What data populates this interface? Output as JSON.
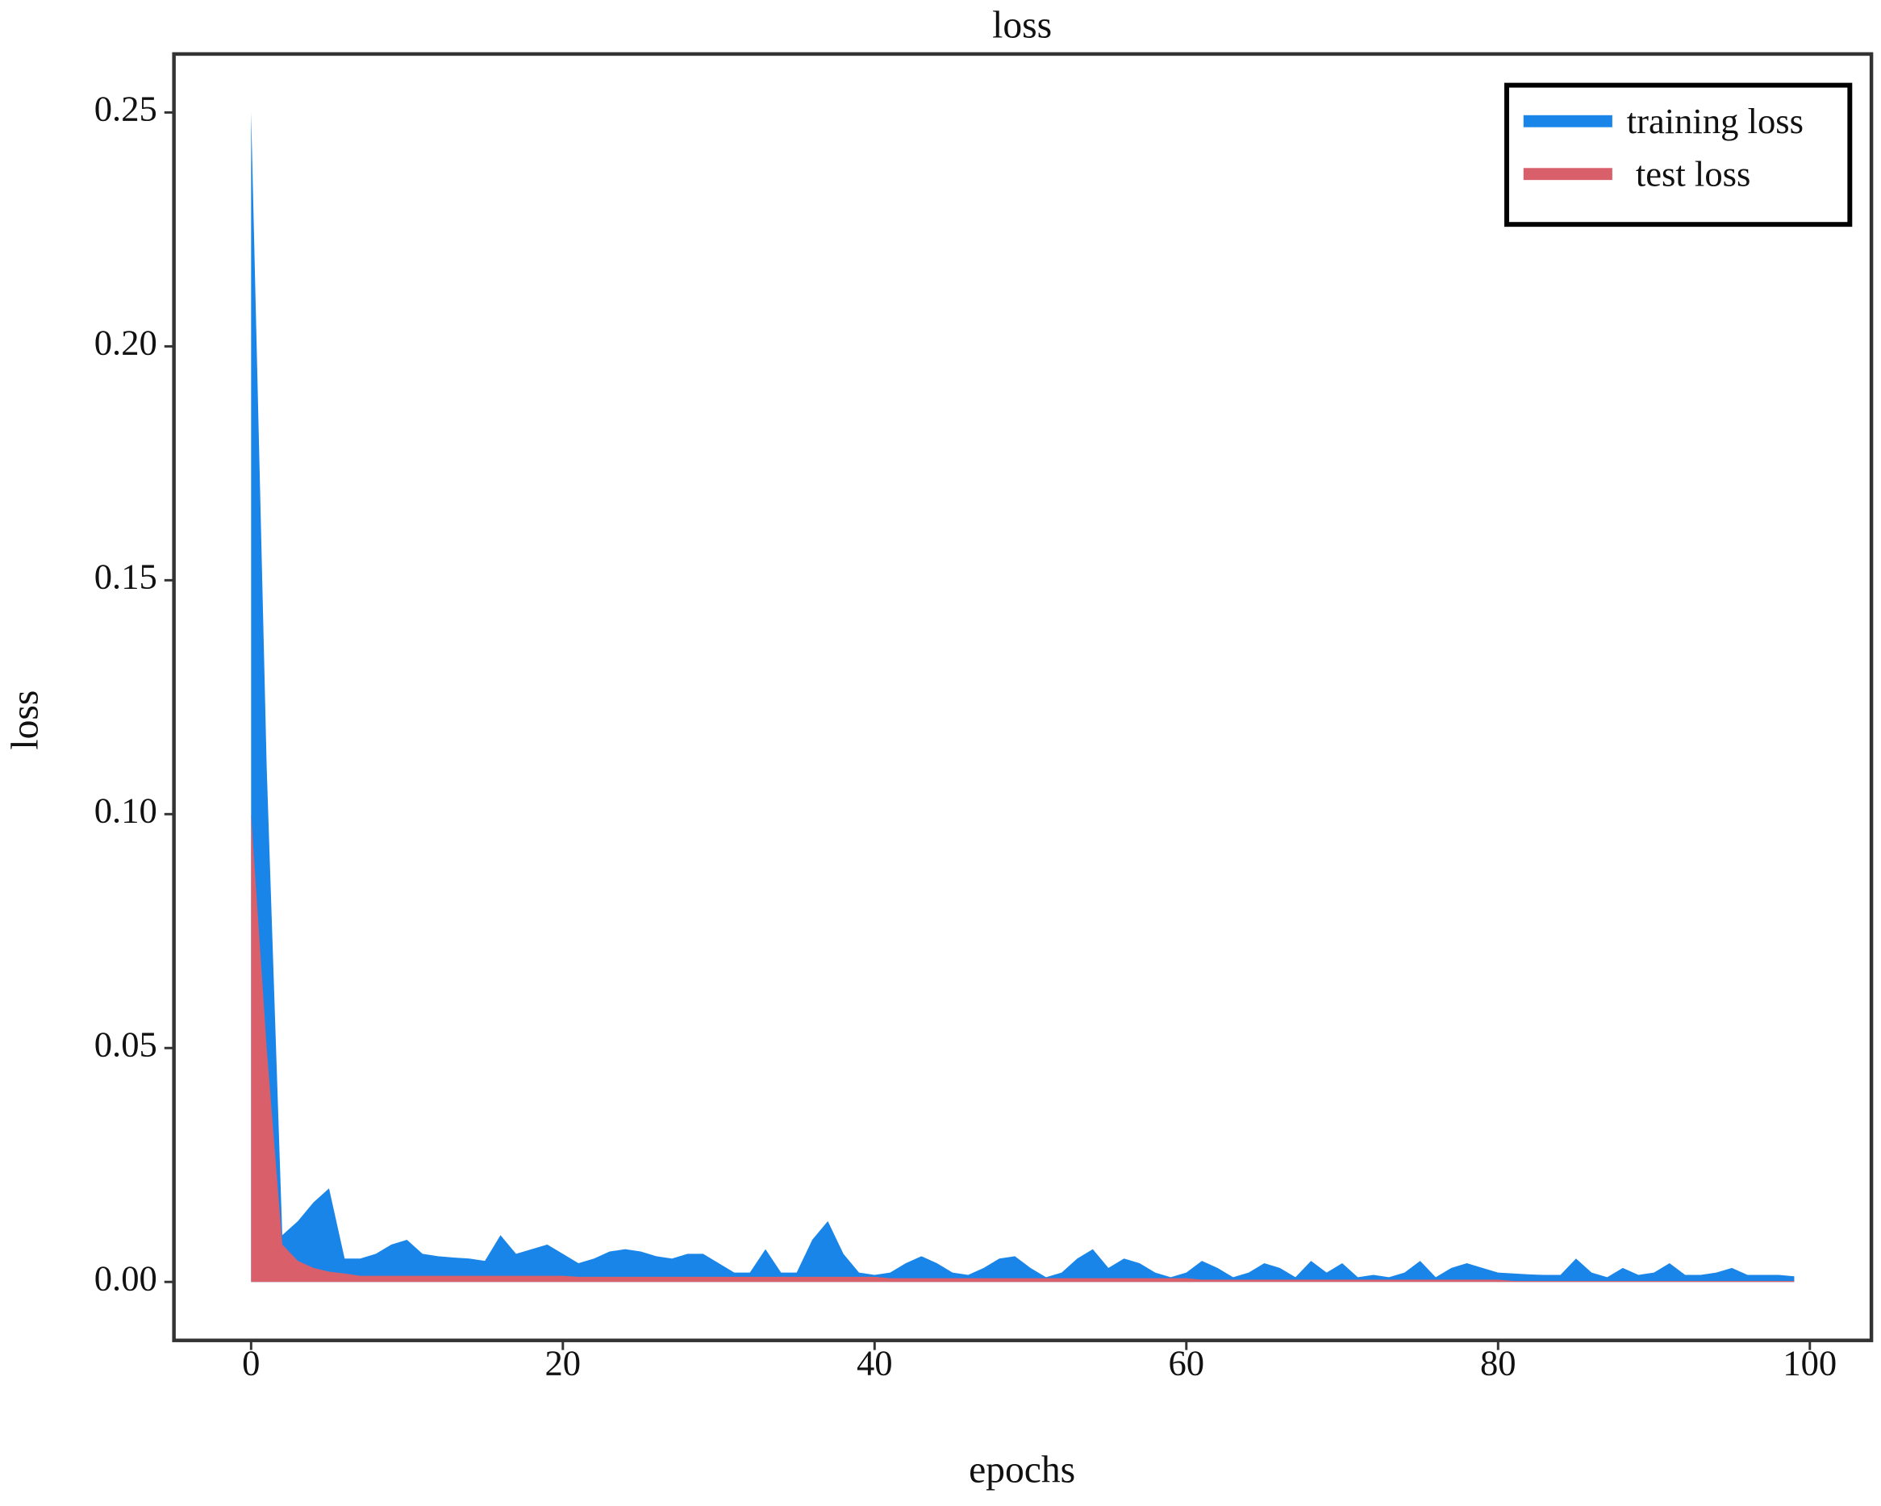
{
  "chart_data": {
    "type": "area",
    "title": "loss",
    "x_label": "epochs",
    "y_label": "loss",
    "x": [
      0,
      1,
      2,
      3,
      4,
      5,
      6,
      7,
      8,
      9,
      10,
      11,
      12,
      13,
      14,
      15,
      16,
      17,
      18,
      19,
      20,
      21,
      22,
      23,
      24,
      25,
      26,
      27,
      28,
      29,
      30,
      31,
      32,
      33,
      34,
      35,
      36,
      37,
      38,
      39,
      40,
      41,
      42,
      43,
      44,
      45,
      46,
      47,
      48,
      49,
      50,
      51,
      52,
      53,
      54,
      55,
      56,
      57,
      58,
      59,
      60,
      61,
      62,
      63,
      64,
      65,
      66,
      67,
      68,
      69,
      70,
      71,
      72,
      73,
      74,
      75,
      76,
      77,
      78,
      79,
      80,
      81,
      82,
      83,
      84,
      85,
      86,
      87,
      88,
      89,
      90,
      91,
      92,
      93,
      94,
      95,
      96,
      97,
      98,
      99
    ],
    "series": [
      {
        "name": "training loss",
        "color": "#1a85e8",
        "values": [
          0.25,
          0.11,
          0.01,
          0.013,
          0.017,
          0.02,
          0.005,
          0.005,
          0.006,
          0.008,
          0.009,
          0.006,
          0.0055,
          0.0052,
          0.005,
          0.0045,
          0.01,
          0.006,
          0.007,
          0.008,
          0.006,
          0.004,
          0.005,
          0.0065,
          0.007,
          0.0065,
          0.0055,
          0.005,
          0.006,
          0.006,
          0.004,
          0.002,
          0.002,
          0.007,
          0.002,
          0.002,
          0.009,
          0.013,
          0.006,
          0.002,
          0.0015,
          0.002,
          0.004,
          0.0055,
          0.004,
          0.002,
          0.0015,
          0.003,
          0.005,
          0.0055,
          0.003,
          0.001,
          0.002,
          0.005,
          0.007,
          0.003,
          0.005,
          0.004,
          0.002,
          0.001,
          0.002,
          0.0045,
          0.003,
          0.001,
          0.002,
          0.004,
          0.003,
          0.001,
          0.0045,
          0.002,
          0.004,
          0.001,
          0.0015,
          0.001,
          0.002,
          0.0045,
          0.001,
          0.003,
          0.004,
          0.003,
          0.002,
          0.0018,
          0.0016,
          0.0015,
          0.0015,
          0.005,
          0.002,
          0.001,
          0.003,
          0.0015,
          0.002,
          0.004,
          0.0015,
          0.0015,
          0.002,
          0.003,
          0.0015,
          0.0015,
          0.0015,
          0.0012
        ]
      },
      {
        "name": " test loss",
        "color": "#d9606b",
        "values": [
          0.1,
          0.05,
          0.008,
          0.0045,
          0.003,
          0.0022,
          0.0018,
          0.0013,
          0.0013,
          0.0013,
          0.0013,
          0.0013,
          0.0013,
          0.0013,
          0.0013,
          0.0013,
          0.0013,
          0.0013,
          0.0013,
          0.0013,
          0.0013,
          0.0011,
          0.0011,
          0.0011,
          0.0011,
          0.0011,
          0.0011,
          0.0011,
          0.0011,
          0.0011,
          0.0011,
          0.0011,
          0.0011,
          0.0011,
          0.0011,
          0.0011,
          0.0011,
          0.0011,
          0.0011,
          0.0011,
          0.0011,
          0.0008,
          0.0008,
          0.0008,
          0.0008,
          0.0008,
          0.0008,
          0.0008,
          0.0008,
          0.0008,
          0.0008,
          0.0008,
          0.0008,
          0.0008,
          0.0008,
          0.0008,
          0.0008,
          0.0008,
          0.0008,
          0.0008,
          0.0008,
          0.0005,
          0.0005,
          0.0005,
          0.0005,
          0.0005,
          0.0005,
          0.0005,
          0.0005,
          0.0005,
          0.0005,
          0.0005,
          0.0005,
          0.0005,
          0.0005,
          0.0005,
          0.0005,
          0.0005,
          0.0005,
          0.0005,
          0.0005,
          0.0002,
          0.0002,
          0.0002,
          0.0002,
          0.0002,
          0.0002,
          0.0002,
          0.0002,
          0.0002,
          0.0002,
          0.0002,
          0.0002,
          0.0002,
          0.0002,
          0.0002,
          0.0002,
          0.0002,
          0.0002,
          0.0002
        ]
      }
    ],
    "xlim": [
      -4.95,
      103.95
    ],
    "xticks": [
      0,
      20,
      40,
      60,
      80,
      100
    ],
    "ylim": [
      -0.0125,
      0.2625
    ],
    "yticks": [
      {
        "value": 0,
        "label": "0.00"
      },
      0.05,
      {
        "value": 0.1,
        "label": "0.10"
      },
      0.15,
      {
        "value": 0.2,
        "label": "0.20"
      },
      0.25
    ],
    "grid": false,
    "legend": "upper right"
  }
}
